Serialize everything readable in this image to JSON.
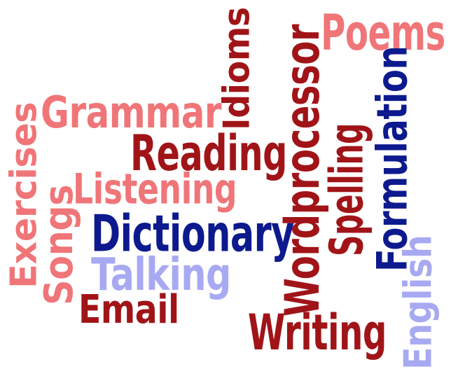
{
  "colors": {
    "pink": "#f07578",
    "darkred": "#a01418",
    "navy": "#0c1a8e",
    "lavender": "#a7a9f2",
    "background": "#ffffff"
  },
  "words": {
    "poems": "Poems",
    "idioms": "Idioms",
    "wordprocessor": "Wordprocessor",
    "grammar": "Grammar",
    "formulation": "Formulation",
    "reading": "Reading",
    "exercises": "Exercises",
    "spelling": "Spelling",
    "listening": "Listening",
    "songs": "Songs",
    "dictionary": "Dictionary",
    "talking": "Talking",
    "english": "English",
    "email": "Email",
    "writing": "Writing"
  }
}
